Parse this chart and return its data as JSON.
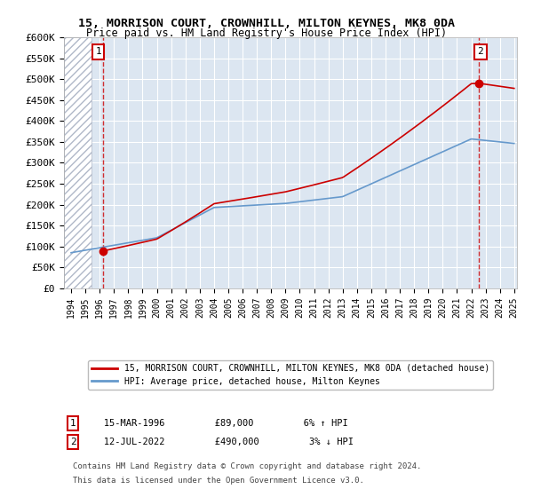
{
  "title1": "15, MORRISON COURT, CROWNHILL, MILTON KEYNES, MK8 0DA",
  "title2": "Price paid vs. HM Land Registry's House Price Index (HPI)",
  "ylabel_ticks": [
    "£0",
    "£50K",
    "£100K",
    "£150K",
    "£200K",
    "£250K",
    "£300K",
    "£350K",
    "£400K",
    "£450K",
    "£500K",
    "£550K",
    "£600K"
  ],
  "ytick_values": [
    0,
    50000,
    100000,
    150000,
    200000,
    250000,
    300000,
    350000,
    400000,
    450000,
    500000,
    550000,
    600000
  ],
  "xmin": 1994,
  "xmax": 2025,
  "ymin": 0,
  "ymax": 600000,
  "sale1_year": 1996.21,
  "sale1_price": 89000,
  "sale2_year": 2022.54,
  "sale2_price": 490000,
  "legend_line1": "15, MORRISON COURT, CROWNHILL, MILTON KEYNES, MK8 0DA (detached house)",
  "legend_line2": "HPI: Average price, detached house, Milton Keynes",
  "note1": "1    15-MAR-1996         £89,000         6% ↑ HPI",
  "note2": "2    12-JUL-2022         £490,000         3% ↓ HPI",
  "footnote1": "Contains HM Land Registry data © Crown copyright and database right 2024.",
  "footnote2": "This data is licensed under the Open Government Licence v3.0.",
  "hpi_color": "#6699cc",
  "sale_color": "#cc0000",
  "bg_color": "#dce6f1",
  "hatch_color": "#b0b8c8",
  "grid_color": "#ffffff",
  "sale1_label": "1",
  "sale2_label": "2"
}
